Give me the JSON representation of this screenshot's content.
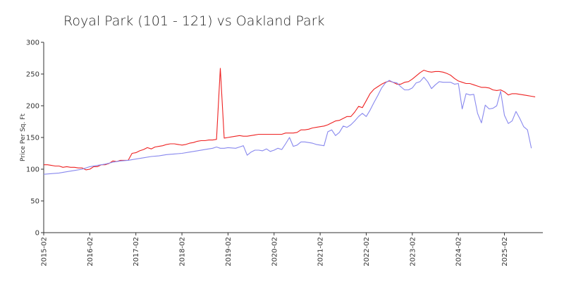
{
  "chart_data": {
    "type": "line",
    "title": "Royal Park (101 - 121) vs Oakland Park",
    "xlabel": "",
    "ylabel": "Price Per Sq. Ft",
    "ylim": [
      0,
      300
    ],
    "yticks": [
      "0",
      "50",
      "100",
      "150",
      "200",
      "250",
      "300"
    ],
    "xticks": [
      "2015-02",
      "2016-02",
      "2017-02",
      "2018-02",
      "2019-02",
      "2020-02",
      "2021-02",
      "2022-02",
      "2023-02",
      "2024-02",
      "2025-02"
    ],
    "xrange": [
      "2015-02",
      "2025-12"
    ],
    "grid": false,
    "legend": "none",
    "series": [
      {
        "color": "#ee2222",
        "points": [
          [
            "2015-02",
            107
          ],
          [
            "2015-03",
            107
          ],
          [
            "2015-04",
            106
          ],
          [
            "2015-05",
            105
          ],
          [
            "2015-06",
            105
          ],
          [
            "2015-07",
            103
          ],
          [
            "2015-08",
            104
          ],
          [
            "2015-09",
            103
          ],
          [
            "2015-10",
            103
          ],
          [
            "2015-11",
            102
          ],
          [
            "2015-12",
            102
          ],
          [
            "2016-01",
            99
          ],
          [
            "2016-02",
            100
          ],
          [
            "2016-03",
            104
          ],
          [
            "2016-04",
            104
          ],
          [
            "2016-05",
            107
          ],
          [
            "2016-06",
            107
          ],
          [
            "2016-07",
            109
          ],
          [
            "2016-08",
            113
          ],
          [
            "2016-09",
            112
          ],
          [
            "2016-10",
            114
          ],
          [
            "2016-11",
            114
          ],
          [
            "2016-12",
            114
          ],
          [
            "2017-01",
            125
          ],
          [
            "2017-02",
            126
          ],
          [
            "2017-03",
            129
          ],
          [
            "2017-04",
            131
          ],
          [
            "2017-05",
            134
          ],
          [
            "2017-06",
            132
          ],
          [
            "2017-07",
            135
          ],
          [
            "2017-08",
            136
          ],
          [
            "2017-09",
            137
          ],
          [
            "2017-10",
            139
          ],
          [
            "2017-11",
            140
          ],
          [
            "2017-12",
            140
          ],
          [
            "2018-01",
            139
          ],
          [
            "2018-02",
            138
          ],
          [
            "2018-03",
            139
          ],
          [
            "2018-04",
            141
          ],
          [
            "2018-05",
            142
          ],
          [
            "2018-06",
            144
          ],
          [
            "2018-07",
            145
          ],
          [
            "2018-08",
            145
          ],
          [
            "2018-09",
            146
          ],
          [
            "2018-10",
            146
          ],
          [
            "2018-11",
            147
          ],
          [
            "2018-12",
            259
          ],
          [
            "2019-01",
            149
          ],
          [
            "2019-02",
            150
          ],
          [
            "2019-03",
            151
          ],
          [
            "2019-04",
            152
          ],
          [
            "2019-05",
            153
          ],
          [
            "2019-06",
            152
          ],
          [
            "2019-07",
            152
          ],
          [
            "2019-08",
            153
          ],
          [
            "2019-09",
            154
          ],
          [
            "2019-10",
            155
          ],
          [
            "2019-11",
            155
          ],
          [
            "2019-12",
            155
          ],
          [
            "2020-01",
            155
          ],
          [
            "2020-02",
            155
          ],
          [
            "2020-03",
            155
          ],
          [
            "2020-04",
            155
          ],
          [
            "2020-05",
            157
          ],
          [
            "2020-06",
            157
          ],
          [
            "2020-07",
            157
          ],
          [
            "2020-08",
            158
          ],
          [
            "2020-09",
            162
          ],
          [
            "2020-10",
            162
          ],
          [
            "2020-11",
            163
          ],
          [
            "2020-12",
            165
          ],
          [
            "2021-01",
            166
          ],
          [
            "2021-02",
            167
          ],
          [
            "2021-03",
            168
          ],
          [
            "2021-04",
            170
          ],
          [
            "2021-05",
            173
          ],
          [
            "2021-06",
            176
          ],
          [
            "2021-07",
            177
          ],
          [
            "2021-08",
            180
          ],
          [
            "2021-09",
            183
          ],
          [
            "2021-10",
            183
          ],
          [
            "2021-11",
            190
          ],
          [
            "2021-12",
            199
          ],
          [
            "2022-01",
            197
          ],
          [
            "2022-02",
            208
          ],
          [
            "2022-03",
            219
          ],
          [
            "2022-04",
            226
          ],
          [
            "2022-05",
            230
          ],
          [
            "2022-06",
            234
          ],
          [
            "2022-07",
            237
          ],
          [
            "2022-08",
            239
          ],
          [
            "2022-09",
            237
          ],
          [
            "2022-10",
            234
          ],
          [
            "2022-11",
            234
          ],
          [
            "2022-12",
            237
          ],
          [
            "2023-01",
            238
          ],
          [
            "2023-02",
            242
          ],
          [
            "2023-03",
            247
          ],
          [
            "2023-04",
            252
          ],
          [
            "2023-05",
            256
          ],
          [
            "2023-06",
            254
          ],
          [
            "2023-07",
            253
          ],
          [
            "2023-08",
            254
          ],
          [
            "2023-09",
            254
          ],
          [
            "2023-10",
            253
          ],
          [
            "2023-11",
            251
          ],
          [
            "2023-12",
            248
          ],
          [
            "2024-01",
            243
          ],
          [
            "2024-02",
            239
          ],
          [
            "2024-03",
            237
          ],
          [
            "2024-04",
            235
          ],
          [
            "2024-05",
            235
          ],
          [
            "2024-06",
            233
          ],
          [
            "2024-07",
            231
          ],
          [
            "2024-08",
            229
          ],
          [
            "2024-09",
            229
          ],
          [
            "2024-10",
            228
          ],
          [
            "2024-11",
            225
          ],
          [
            "2024-12",
            224
          ],
          [
            "2025-01",
            225
          ],
          [
            "2025-02",
            222
          ],
          [
            "2025-03",
            217
          ],
          [
            "2025-04",
            219
          ],
          [
            "2025-05",
            219
          ],
          [
            "2025-06",
            218
          ],
          [
            "2025-07",
            217
          ],
          [
            "2025-08",
            216
          ],
          [
            "2025-09",
            215
          ],
          [
            "2025-10",
            214
          ]
        ]
      },
      {
        "color": "#8888ee",
        "points": [
          [
            "2015-02",
            92
          ],
          [
            "2015-04",
            93
          ],
          [
            "2015-06",
            94
          ],
          [
            "2015-08",
            96
          ],
          [
            "2015-10",
            98
          ],
          [
            "2015-12",
            100
          ],
          [
            "2016-02",
            104
          ],
          [
            "2016-04",
            106
          ],
          [
            "2016-06",
            108
          ],
          [
            "2016-08",
            111
          ],
          [
            "2016-10",
            113
          ],
          [
            "2016-12",
            114
          ],
          [
            "2017-02",
            116
          ],
          [
            "2017-04",
            118
          ],
          [
            "2017-06",
            120
          ],
          [
            "2017-08",
            121
          ],
          [
            "2017-10",
            123
          ],
          [
            "2017-12",
            124
          ],
          [
            "2018-02",
            125
          ],
          [
            "2018-04",
            127
          ],
          [
            "2018-06",
            129
          ],
          [
            "2018-08",
            131
          ],
          [
            "2018-10",
            133
          ],
          [
            "2018-11",
            135
          ],
          [
            "2018-12",
            133
          ],
          [
            "2019-01",
            133
          ],
          [
            "2019-02",
            134
          ],
          [
            "2019-04",
            133
          ],
          [
            "2019-05",
            135
          ],
          [
            "2019-06",
            137
          ],
          [
            "2019-07",
            122
          ],
          [
            "2019-08",
            127
          ],
          [
            "2019-09",
            130
          ],
          [
            "2019-10",
            130
          ],
          [
            "2019-11",
            129
          ],
          [
            "2019-12",
            132
          ],
          [
            "2020-01",
            128
          ],
          [
            "2020-02",
            130
          ],
          [
            "2020-03",
            133
          ],
          [
            "2020-04",
            131
          ],
          [
            "2020-05",
            140
          ],
          [
            "2020-06",
            150
          ],
          [
            "2020-07",
            136
          ],
          [
            "2020-08",
            138
          ],
          [
            "2020-09",
            143
          ],
          [
            "2020-10",
            143
          ],
          [
            "2020-11",
            142
          ],
          [
            "2020-12",
            141
          ],
          [
            "2021-01",
            139
          ],
          [
            "2021-02",
            138
          ],
          [
            "2021-03",
            137
          ],
          [
            "2021-04",
            159
          ],
          [
            "2021-05",
            162
          ],
          [
            "2021-06",
            153
          ],
          [
            "2021-07",
            158
          ],
          [
            "2021-08",
            168
          ],
          [
            "2021-09",
            166
          ],
          [
            "2021-10",
            170
          ],
          [
            "2021-11",
            176
          ],
          [
            "2021-12",
            183
          ],
          [
            "2022-01",
            188
          ],
          [
            "2022-02",
            183
          ],
          [
            "2022-03",
            193
          ],
          [
            "2022-04",
            205
          ],
          [
            "2022-05",
            216
          ],
          [
            "2022-06",
            228
          ],
          [
            "2022-07",
            236
          ],
          [
            "2022-08",
            240
          ],
          [
            "2022-09",
            237
          ],
          [
            "2022-10",
            236
          ],
          [
            "2022-11",
            230
          ],
          [
            "2022-12",
            225
          ],
          [
            "2023-01",
            225
          ],
          [
            "2023-02",
            228
          ],
          [
            "2023-03",
            236
          ],
          [
            "2023-04",
            238
          ],
          [
            "2023-05",
            245
          ],
          [
            "2023-06",
            238
          ],
          [
            "2023-07",
            227
          ],
          [
            "2023-08",
            233
          ],
          [
            "2023-09",
            238
          ],
          [
            "2023-10",
            237
          ],
          [
            "2023-11",
            237
          ],
          [
            "2023-12",
            237
          ],
          [
            "2024-01",
            234
          ],
          [
            "2024-02",
            235
          ],
          [
            "2024-03",
            195
          ],
          [
            "2024-04",
            219
          ],
          [
            "2024-05",
            217
          ],
          [
            "2024-06",
            218
          ],
          [
            "2024-07",
            188
          ],
          [
            "2024-08",
            173
          ],
          [
            "2024-09",
            201
          ],
          [
            "2024-10",
            195
          ],
          [
            "2024-11",
            196
          ],
          [
            "2024-12",
            200
          ],
          [
            "2025-01",
            223
          ],
          [
            "2025-02",
            185
          ],
          [
            "2025-03",
            172
          ],
          [
            "2025-04",
            176
          ],
          [
            "2025-05",
            191
          ],
          [
            "2025-06",
            180
          ],
          [
            "2025-07",
            167
          ],
          [
            "2025-08",
            162
          ],
          [
            "2025-09",
            133
          ]
        ]
      }
    ]
  }
}
